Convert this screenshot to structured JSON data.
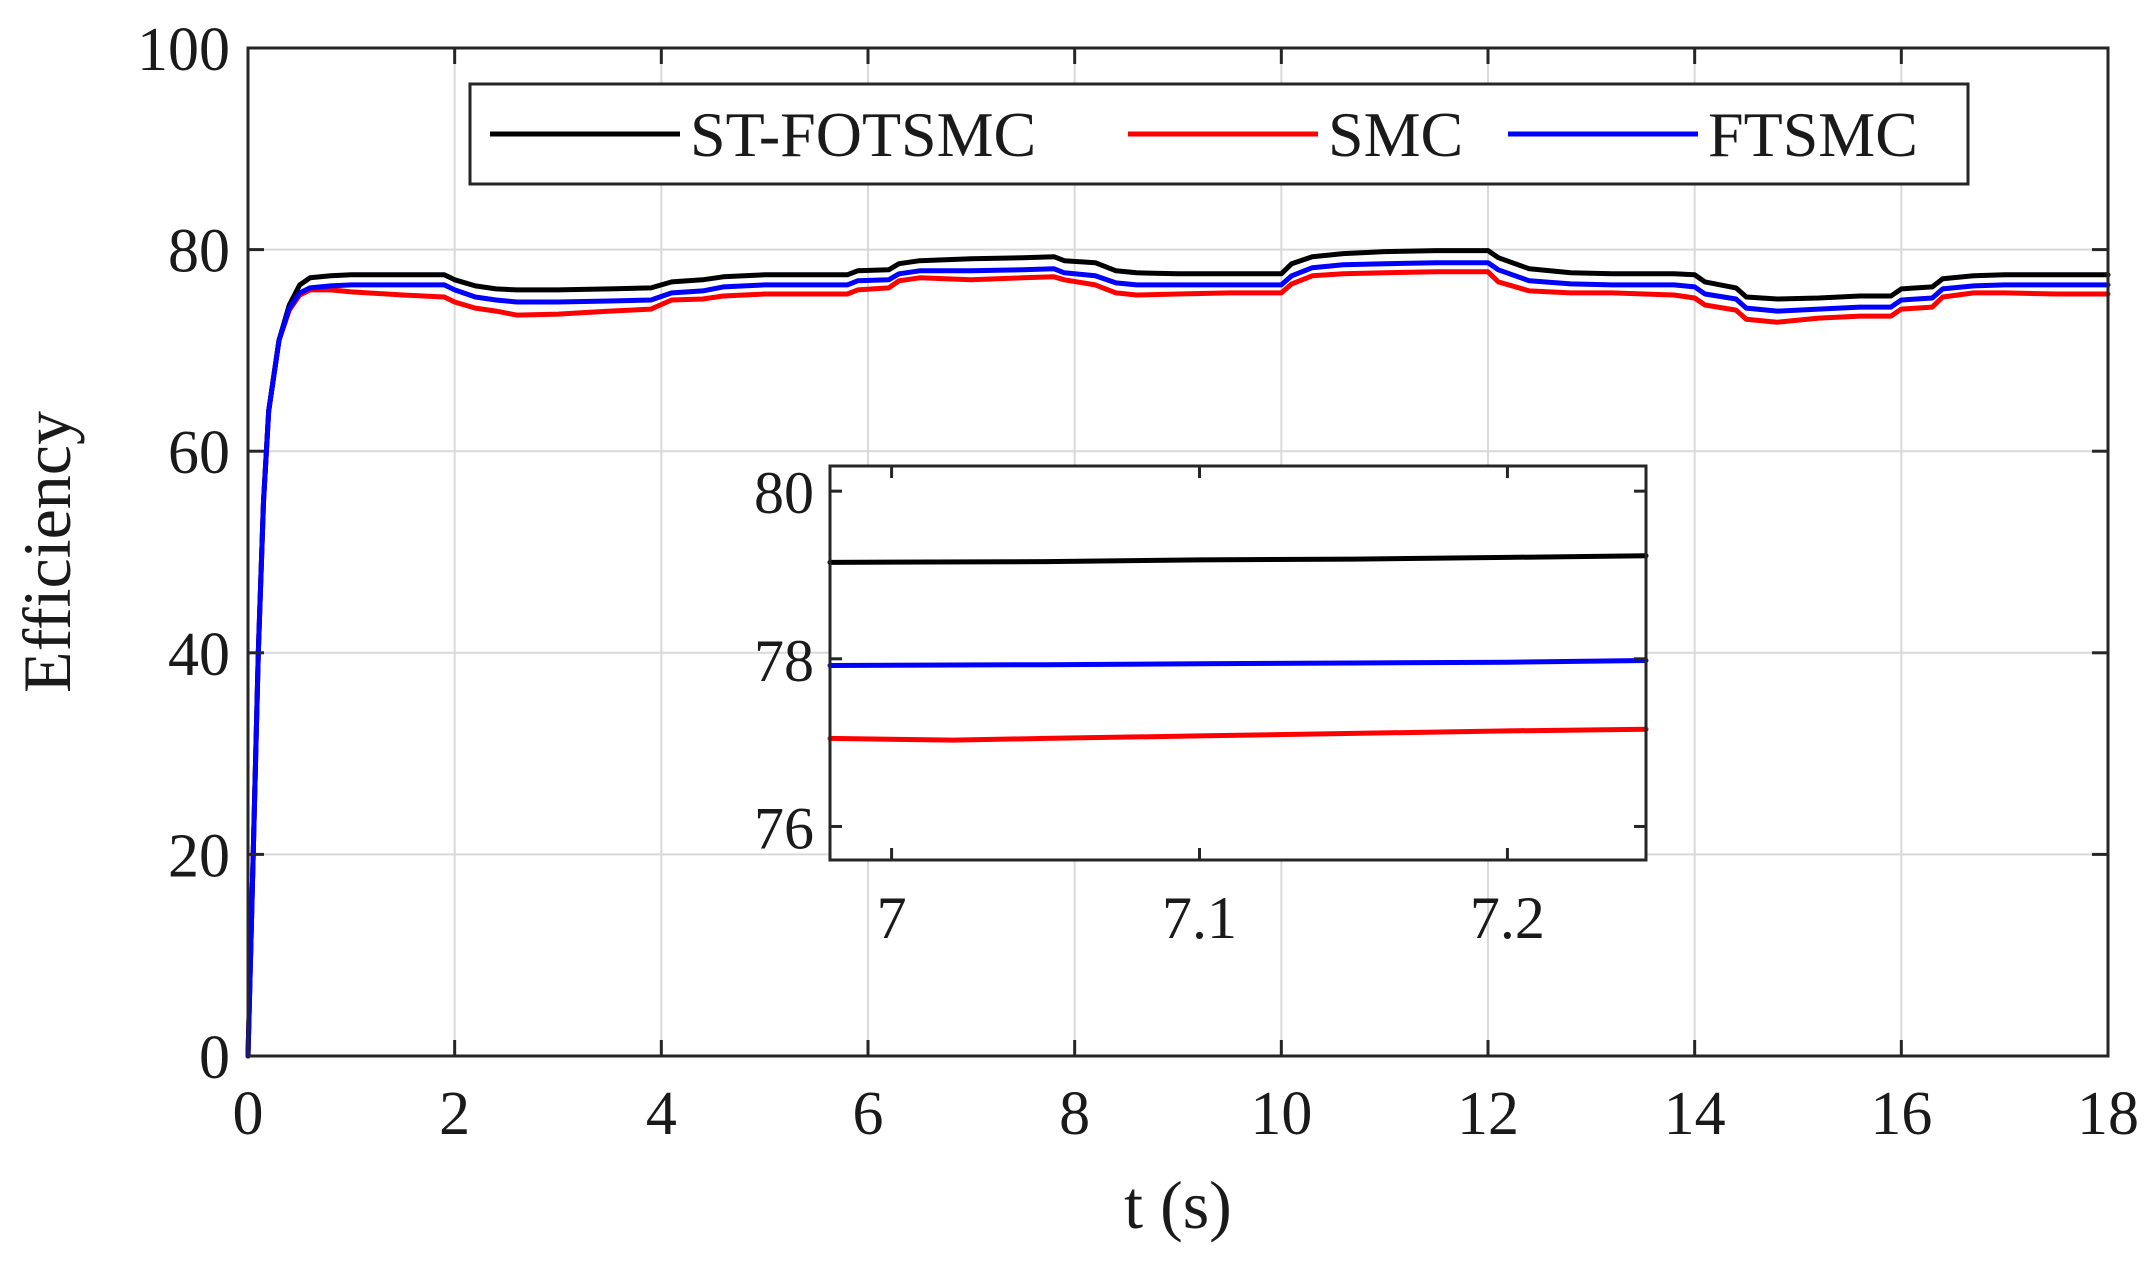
{
  "chart_data": {
    "type": "line",
    "title": "",
    "xlabel": "t (s)",
    "ylabel": "Efficiency",
    "xlim": [
      0,
      18
    ],
    "ylim": [
      0,
      100
    ],
    "xticks": [
      0,
      2,
      4,
      6,
      8,
      10,
      12,
      14,
      16,
      18
    ],
    "yticks": [
      0,
      20,
      40,
      60,
      80,
      100
    ],
    "grid": true,
    "legend": {
      "placement": "top-center",
      "orientation": "horizontal"
    },
    "series": [
      {
        "name": "ST-FOTSMC",
        "color": "#000000",
        "points": [
          [
            0,
            0
          ],
          [
            0.05,
            20
          ],
          [
            0.1,
            40
          ],
          [
            0.15,
            55
          ],
          [
            0.2,
            64
          ],
          [
            0.3,
            71
          ],
          [
            0.4,
            74.5
          ],
          [
            0.5,
            76.5
          ],
          [
            0.6,
            77.2
          ],
          [
            0.8,
            77.4
          ],
          [
            1.0,
            77.5
          ],
          [
            1.5,
            77.5
          ],
          [
            1.9,
            77.5
          ],
          [
            2.0,
            77.0
          ],
          [
            2.2,
            76.4
          ],
          [
            2.4,
            76.1
          ],
          [
            2.6,
            76.0
          ],
          [
            3.0,
            76.0
          ],
          [
            3.5,
            76.1
          ],
          [
            3.9,
            76.2
          ],
          [
            4.1,
            76.8
          ],
          [
            4.4,
            77.0
          ],
          [
            4.6,
            77.3
          ],
          [
            5.0,
            77.5
          ],
          [
            5.5,
            77.5
          ],
          [
            5.8,
            77.5
          ],
          [
            5.9,
            77.9
          ],
          [
            6.2,
            78.0
          ],
          [
            6.3,
            78.6
          ],
          [
            6.5,
            78.9
          ],
          [
            7.0,
            79.1
          ],
          [
            7.5,
            79.2
          ],
          [
            7.8,
            79.3
          ],
          [
            7.9,
            78.9
          ],
          [
            8.2,
            78.7
          ],
          [
            8.4,
            77.9
          ],
          [
            8.6,
            77.7
          ],
          [
            9.0,
            77.6
          ],
          [
            9.5,
            77.6
          ],
          [
            10.0,
            77.6
          ],
          [
            10.1,
            78.6
          ],
          [
            10.3,
            79.3
          ],
          [
            10.6,
            79.6
          ],
          [
            11.0,
            79.8
          ],
          [
            11.5,
            79.9
          ],
          [
            12.0,
            79.9
          ],
          [
            12.1,
            79.2
          ],
          [
            12.4,
            78.1
          ],
          [
            12.8,
            77.7
          ],
          [
            13.2,
            77.6
          ],
          [
            13.8,
            77.6
          ],
          [
            14.0,
            77.5
          ],
          [
            14.1,
            76.8
          ],
          [
            14.4,
            76.2
          ],
          [
            14.5,
            75.3
          ],
          [
            14.8,
            75.1
          ],
          [
            15.2,
            75.2
          ],
          [
            15.6,
            75.4
          ],
          [
            15.9,
            75.4
          ],
          [
            16.0,
            76.1
          ],
          [
            16.3,
            76.3
          ],
          [
            16.4,
            77.1
          ],
          [
            16.7,
            77.4
          ],
          [
            17.0,
            77.5
          ],
          [
            17.5,
            77.5
          ],
          [
            18.0,
            77.5
          ]
        ]
      },
      {
        "name": "SMC",
        "color": "#ff0000",
        "points": [
          [
            0,
            0
          ],
          [
            0.05,
            20
          ],
          [
            0.1,
            40
          ],
          [
            0.15,
            55
          ],
          [
            0.2,
            64
          ],
          [
            0.3,
            71
          ],
          [
            0.4,
            74.0
          ],
          [
            0.5,
            75.5
          ],
          [
            0.6,
            76.0
          ],
          [
            0.8,
            76.0
          ],
          [
            1.0,
            75.8
          ],
          [
            1.5,
            75.5
          ],
          [
            1.9,
            75.3
          ],
          [
            2.0,
            74.8
          ],
          [
            2.2,
            74.2
          ],
          [
            2.4,
            73.9
          ],
          [
            2.6,
            73.5
          ],
          [
            3.0,
            73.6
          ],
          [
            3.5,
            73.9
          ],
          [
            3.9,
            74.1
          ],
          [
            4.1,
            75.0
          ],
          [
            4.4,
            75.1
          ],
          [
            4.6,
            75.4
          ],
          [
            5.0,
            75.6
          ],
          [
            5.5,
            75.6
          ],
          [
            5.8,
            75.6
          ],
          [
            5.9,
            76.0
          ],
          [
            6.2,
            76.2
          ],
          [
            6.3,
            76.9
          ],
          [
            6.5,
            77.2
          ],
          [
            7.0,
            77.0
          ],
          [
            7.5,
            77.2
          ],
          [
            7.8,
            77.3
          ],
          [
            7.9,
            77.0
          ],
          [
            8.2,
            76.5
          ],
          [
            8.4,
            75.7
          ],
          [
            8.6,
            75.5
          ],
          [
            9.0,
            75.6
          ],
          [
            9.5,
            75.7
          ],
          [
            10.0,
            75.7
          ],
          [
            10.1,
            76.6
          ],
          [
            10.3,
            77.4
          ],
          [
            10.6,
            77.6
          ],
          [
            11.0,
            77.7
          ],
          [
            11.5,
            77.8
          ],
          [
            12.0,
            77.8
          ],
          [
            12.1,
            76.8
          ],
          [
            12.4,
            75.9
          ],
          [
            12.8,
            75.7
          ],
          [
            13.2,
            75.7
          ],
          [
            13.8,
            75.5
          ],
          [
            14.0,
            75.2
          ],
          [
            14.1,
            74.5
          ],
          [
            14.4,
            74.0
          ],
          [
            14.5,
            73.1
          ],
          [
            14.8,
            72.8
          ],
          [
            15.2,
            73.2
          ],
          [
            15.6,
            73.4
          ],
          [
            15.9,
            73.4
          ],
          [
            16.0,
            74.1
          ],
          [
            16.3,
            74.3
          ],
          [
            16.4,
            75.3
          ],
          [
            16.7,
            75.7
          ],
          [
            17.0,
            75.7
          ],
          [
            17.5,
            75.6
          ],
          [
            18.0,
            75.6
          ]
        ]
      },
      {
        "name": "FTSMC",
        "color": "#0000ff",
        "points": [
          [
            0,
            0
          ],
          [
            0.05,
            20
          ],
          [
            0.1,
            40
          ],
          [
            0.15,
            55
          ],
          [
            0.2,
            64
          ],
          [
            0.3,
            71
          ],
          [
            0.4,
            74.2
          ],
          [
            0.5,
            75.7
          ],
          [
            0.6,
            76.2
          ],
          [
            0.8,
            76.4
          ],
          [
            1.0,
            76.5
          ],
          [
            1.5,
            76.5
          ],
          [
            1.9,
            76.5
          ],
          [
            2.0,
            76.0
          ],
          [
            2.2,
            75.3
          ],
          [
            2.4,
            75.0
          ],
          [
            2.6,
            74.8
          ],
          [
            3.0,
            74.8
          ],
          [
            3.5,
            74.9
          ],
          [
            3.9,
            75.0
          ],
          [
            4.1,
            75.7
          ],
          [
            4.4,
            75.9
          ],
          [
            4.6,
            76.3
          ],
          [
            5.0,
            76.5
          ],
          [
            5.5,
            76.5
          ],
          [
            5.8,
            76.5
          ],
          [
            5.9,
            76.9
          ],
          [
            6.2,
            77.0
          ],
          [
            6.3,
            77.6
          ],
          [
            6.5,
            77.9
          ],
          [
            7.0,
            77.9
          ],
          [
            7.5,
            78.0
          ],
          [
            7.8,
            78.1
          ],
          [
            7.9,
            77.7
          ],
          [
            8.2,
            77.4
          ],
          [
            8.4,
            76.7
          ],
          [
            8.6,
            76.5
          ],
          [
            9.0,
            76.5
          ],
          [
            9.5,
            76.5
          ],
          [
            10.0,
            76.5
          ],
          [
            10.1,
            77.4
          ],
          [
            10.3,
            78.2
          ],
          [
            10.6,
            78.5
          ],
          [
            11.0,
            78.6
          ],
          [
            11.5,
            78.7
          ],
          [
            12.0,
            78.7
          ],
          [
            12.1,
            78.0
          ],
          [
            12.4,
            76.9
          ],
          [
            12.8,
            76.6
          ],
          [
            13.2,
            76.5
          ],
          [
            13.8,
            76.5
          ],
          [
            14.0,
            76.3
          ],
          [
            14.1,
            75.6
          ],
          [
            14.4,
            75.1
          ],
          [
            14.5,
            74.2
          ],
          [
            14.8,
            73.9
          ],
          [
            15.2,
            74.1
          ],
          [
            15.6,
            74.3
          ],
          [
            15.9,
            74.3
          ],
          [
            16.0,
            75.0
          ],
          [
            16.3,
            75.2
          ],
          [
            16.4,
            76.1
          ],
          [
            16.7,
            76.4
          ],
          [
            17.0,
            76.5
          ],
          [
            17.5,
            76.5
          ],
          [
            18.0,
            76.5
          ]
        ]
      }
    ],
    "inset": {
      "type": "line",
      "xlim": [
        6.98,
        7.245
      ],
      "ylim": [
        75.6,
        80.3
      ],
      "xticks": [
        7,
        7.1,
        7.2
      ],
      "xticklabels": [
        "7",
        "7.1",
        "7.2"
      ],
      "yticks": [
        76,
        78,
        80
      ],
      "yticklabels": [
        "76",
        "78",
        "80"
      ],
      "grid": false,
      "series": [
        {
          "name": "ST-FOTSMC",
          "color": "#000000",
          "points": [
            [
              6.98,
              79.15
            ],
            [
              7.05,
              79.16
            ],
            [
              7.1,
              79.18
            ],
            [
              7.15,
              79.19
            ],
            [
              7.2,
              79.21
            ],
            [
              7.245,
              79.23
            ]
          ]
        },
        {
          "name": "FTSMC",
          "color": "#0000ff",
          "points": [
            [
              6.98,
              77.92
            ],
            [
              7.05,
              77.93
            ],
            [
              7.1,
              77.94
            ],
            [
              7.15,
              77.95
            ],
            [
              7.2,
              77.96
            ],
            [
              7.245,
              77.98
            ]
          ]
        },
        {
          "name": "SMC",
          "color": "#ff0000",
          "points": [
            [
              6.98,
              77.05
            ],
            [
              7.02,
              77.03
            ],
            [
              7.05,
              77.05
            ],
            [
              7.1,
              77.08
            ],
            [
              7.15,
              77.11
            ],
            [
              7.2,
              77.14
            ],
            [
              7.245,
              77.16
            ]
          ]
        }
      ]
    }
  }
}
